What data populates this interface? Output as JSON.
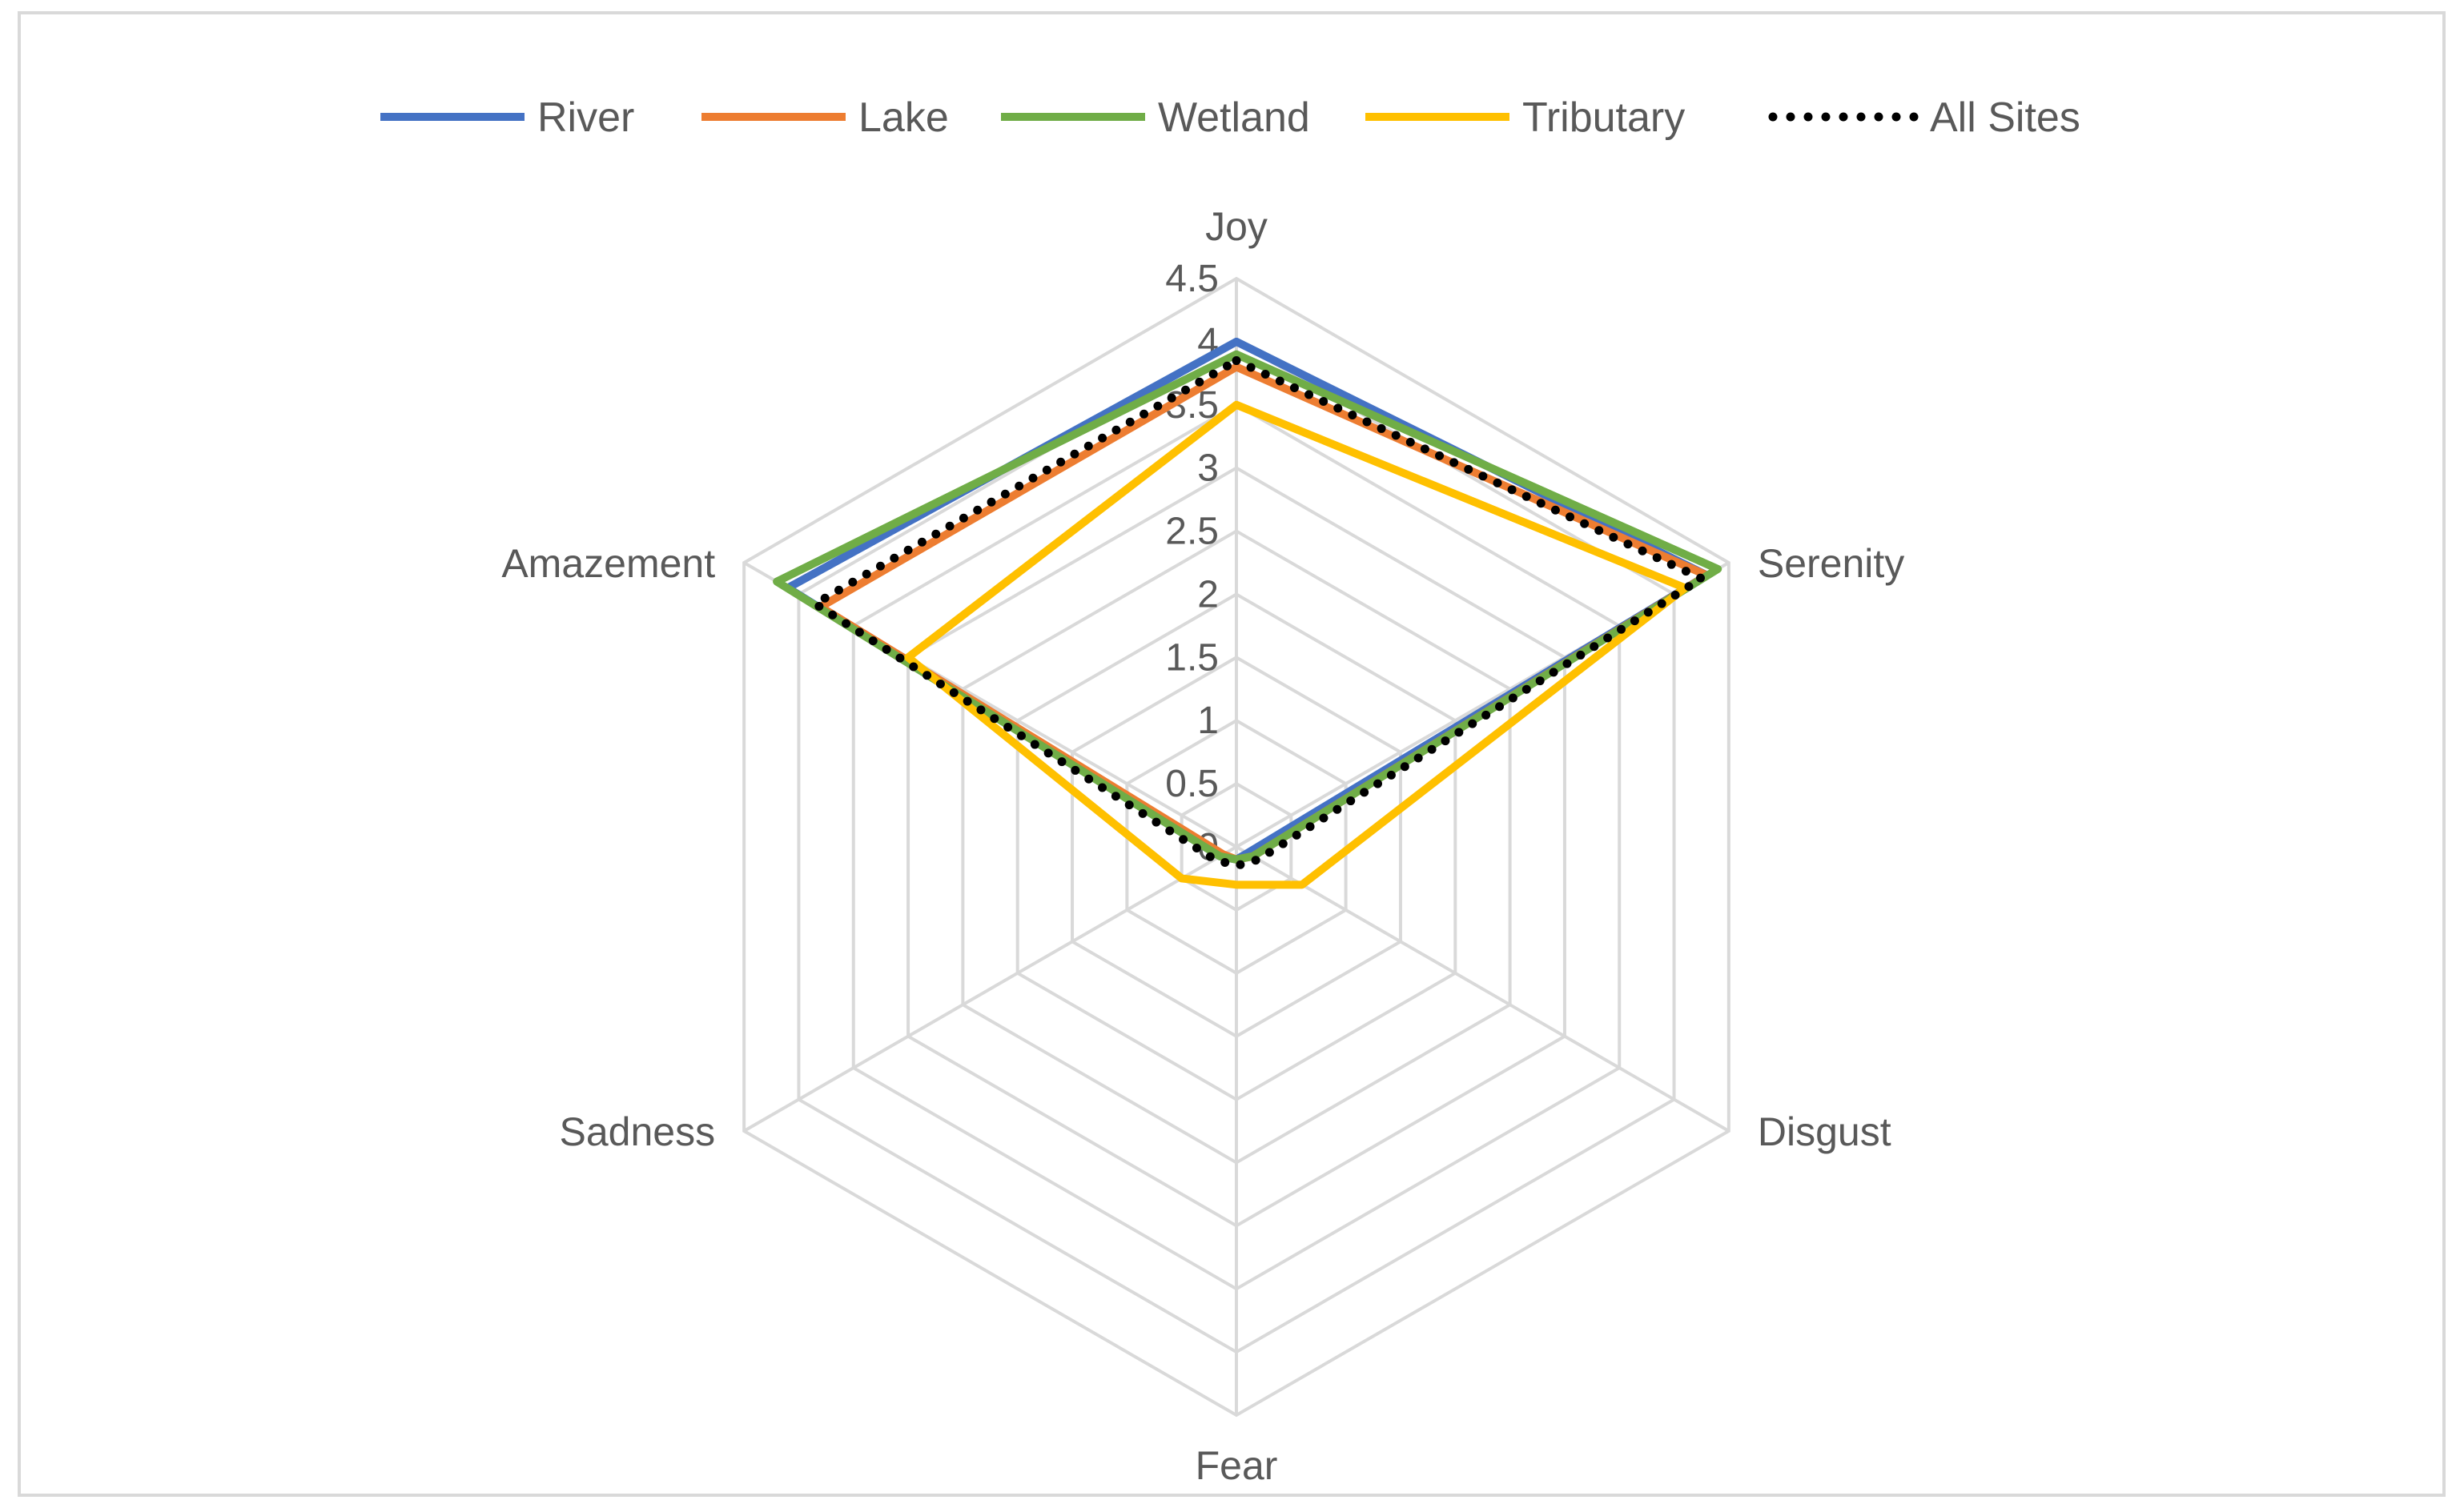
{
  "chart_data": {
    "type": "radar",
    "categories": [
      "Joy",
      "Serenity",
      "Disgust",
      "Fear",
      "Sadness",
      "Amazement"
    ],
    "axis": {
      "min": 0,
      "max": 4.5,
      "step": 0.5,
      "tick_labels": [
        "0",
        "0.5",
        "1",
        "1.5",
        "2",
        "2.5",
        "3",
        "3.5",
        "4",
        "4.5"
      ]
    },
    "grid": true,
    "legend_position": "top",
    "series": [
      {
        "name": "River",
        "color": "#4472c4",
        "style": "solid",
        "values": [
          4.0,
          4.3,
          0.1,
          0.1,
          0.15,
          4.1
        ]
      },
      {
        "name": "Lake",
        "color": "#ed7d31",
        "style": "solid",
        "values": [
          3.8,
          4.3,
          0.15,
          0.1,
          0.12,
          3.8
        ]
      },
      {
        "name": "Wetland",
        "color": "#70ad47",
        "style": "solid",
        "values": [
          3.9,
          4.4,
          0.15,
          0.1,
          0.15,
          4.2
        ]
      },
      {
        "name": "Tributary",
        "color": "#ffc000",
        "style": "solid",
        "values": [
          3.5,
          4.1,
          0.6,
          0.3,
          0.5,
          3.0
        ]
      },
      {
        "name": "All Sites",
        "color": "#000000",
        "style": "dotted",
        "values": [
          3.85,
          4.25,
          0.2,
          0.15,
          0.2,
          3.85
        ]
      }
    ]
  }
}
